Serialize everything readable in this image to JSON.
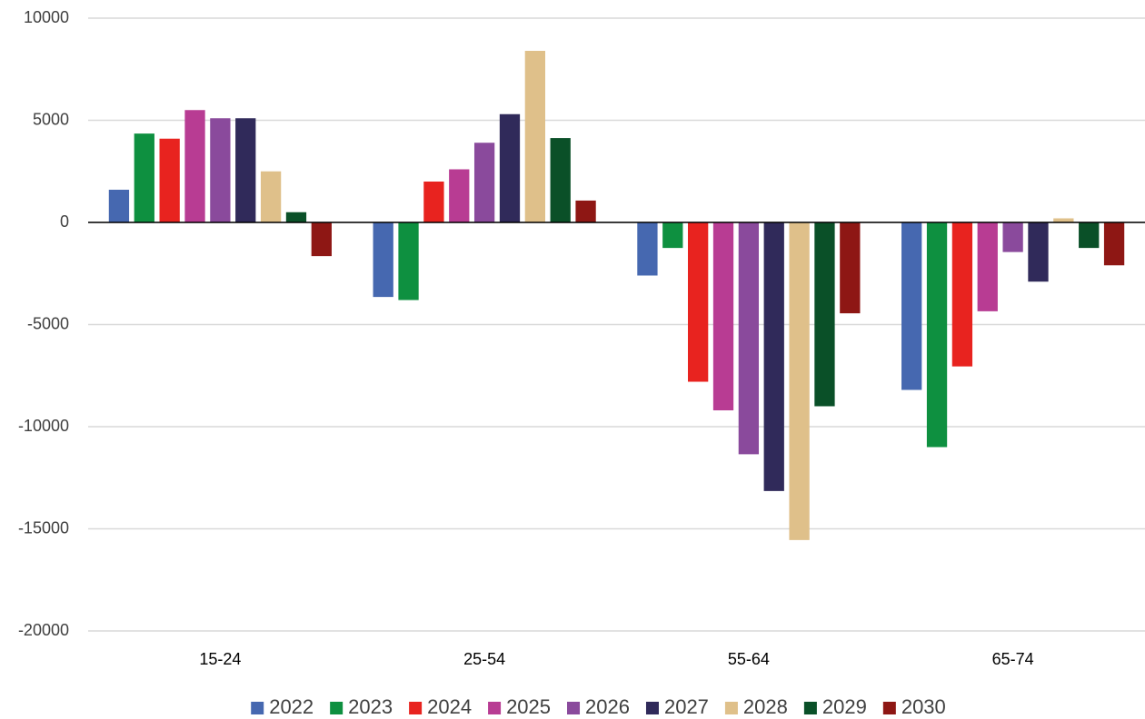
{
  "chart_data": {
    "type": "bar",
    "categories": [
      "15-24",
      "25-54",
      "55-64",
      "65-74"
    ],
    "series": [
      {
        "name": "2022",
        "color": "#4668b0",
        "values": [
          1600,
          -3650,
          -2600,
          -8200
        ]
      },
      {
        "name": "2023",
        "color": "#0e9040",
        "values": [
          4350,
          -3800,
          -1250,
          -11000
        ]
      },
      {
        "name": "2024",
        "color": "#e8231f",
        "values": [
          4100,
          2000,
          -7800,
          -7050
        ]
      },
      {
        "name": "2025",
        "color": "#b83c93",
        "values": [
          5500,
          2600,
          -9200,
          -4350
        ]
      },
      {
        "name": "2026",
        "color": "#8a4a9c",
        "values": [
          5100,
          3900,
          -11350,
          -1450
        ]
      },
      {
        "name": "2027",
        "color": "#302a5a",
        "values": [
          5100,
          5300,
          -13150,
          -2900
        ]
      },
      {
        "name": "2028",
        "color": "#dfc08a",
        "values": [
          2500,
          8400,
          -15550,
          200
        ]
      },
      {
        "name": "2029",
        "color": "#0a5028",
        "values": [
          500,
          4130,
          -9000,
          -1250
        ]
      },
      {
        "name": "2030",
        "color": "#8e1714",
        "values": [
          -1650,
          1070,
          -4450,
          -2100
        ]
      }
    ],
    "ylim": [
      -20000,
      10000
    ],
    "yticks": [
      -20000,
      -15000,
      -10000,
      -5000,
      0,
      5000,
      10000
    ],
    "grid": true,
    "legend": "bottom"
  }
}
